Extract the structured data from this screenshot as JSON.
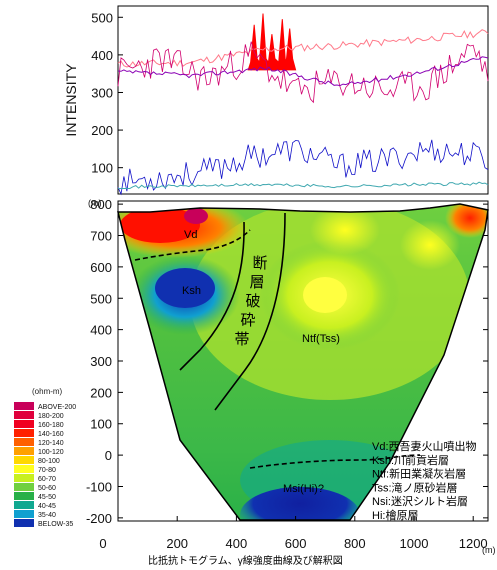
{
  "chart_data": [
    {
      "type": "line",
      "ylabel": "INTENSITY",
      "ylim": [
        30,
        530
      ],
      "xlim": [
        0,
        1250
      ],
      "y_ticks": [
        "100",
        "200",
        "300",
        "400",
        "500"
      ],
      "y_tick_values": [
        100,
        200,
        300,
        400,
        500
      ],
      "series": [
        {
          "color": "#ff7a8a",
          "x": [
            0,
            250,
            500,
            750,
            1000,
            1250
          ],
          "values": [
            375,
            380,
            415,
            425,
            440,
            460
          ]
        },
        {
          "color": "#d0006e",
          "x": [
            0,
            150,
            300,
            450,
            600,
            750,
            900,
            1050,
            1200,
            1250
          ],
          "values": [
            350,
            390,
            335,
            400,
            300,
            330,
            305,
            320,
            420,
            350
          ]
        },
        {
          "color": "#8a00b4",
          "x": [
            0,
            250,
            500,
            750,
            1000,
            1250
          ],
          "values": [
            355,
            345,
            365,
            318,
            350,
            395
          ]
        },
        {
          "color": "#1010c8",
          "x": [
            0,
            150,
            300,
            450,
            600,
            750,
            900,
            1050,
            1200,
            1250
          ],
          "values": [
            60,
            75,
            90,
            130,
            150,
            105,
            120,
            150,
            135,
            120
          ]
        },
        {
          "color": "#40a8b0",
          "x": [
            0,
            250,
            500,
            750,
            1000,
            1250
          ],
          "values": [
            48,
            52,
            55,
            50,
            55,
            58
          ]
        }
      ],
      "fill_color": "#ff0000",
      "fill_peaks_x": [
        460,
        490,
        520,
        555,
        580
      ],
      "fill_peaks_y": [
        480,
        510,
        455,
        495,
        470
      ]
    },
    {
      "type": "heatmap",
      "y_unit": "(m)",
      "x_unit": "(m)",
      "xlim": [
        0,
        1250
      ],
      "ylim": [
        -210,
        810
      ],
      "x_ticks": [
        "0",
        "200",
        "400",
        "600",
        "800",
        "1000",
        "1200"
      ],
      "x_tick_values": [
        0,
        200,
        400,
        600,
        800,
        1000,
        1200
      ],
      "y_ticks": [
        "800",
        "700",
        "600",
        "500",
        "400",
        "300",
        "200",
        "100",
        "0",
        "-100",
        "-200"
      ],
      "y_tick_values": [
        800,
        700,
        600,
        500,
        400,
        300,
        200,
        100,
        0,
        -100,
        -200
      ],
      "colorbar": {
        "title": "(ohm-m)",
        "entries": [
          {
            "label": "ABOVE-200",
            "color": "#c8005a"
          },
          {
            "label": "180-200",
            "color": "#e0003c"
          },
          {
            "label": "160-180",
            "color": "#f00020"
          },
          {
            "label": "140-160",
            "color": "#ff2000"
          },
          {
            "label": "120-140",
            "color": "#ff6000"
          },
          {
            "label": "100-120",
            "color": "#ffa000"
          },
          {
            "label": "80-100",
            "color": "#ffd800"
          },
          {
            "label": "70-80",
            "color": "#ffff20"
          },
          {
            "label": "60-70",
            "color": "#c8f020"
          },
          {
            "label": "50-60",
            "color": "#70d040"
          },
          {
            "label": "45-50",
            "color": "#28b048"
          },
          {
            "label": "40-45",
            "color": "#10a890"
          },
          {
            "label": "35-40",
            "color": "#10a0d0"
          },
          {
            "label": "BELOW-35",
            "color": "#1030b0"
          }
        ]
      },
      "units": [
        "Vd",
        "Ksh",
        "Ntf(Tss)",
        "Msi(Hi)?"
      ],
      "fault_zone_label": "断層破砕帯",
      "key": [
        "Vd:西吾妻火山噴出物",
        "Ksh:川前貢岩層",
        "Ntf:新田業凝灰岩層",
        "Tss:滝ノ原砂岩層",
        "Nsi:迷沢シルト岩層",
        "Hi:檜原層"
      ],
      "caption": "比抵抗トモグラム、γ線強度曲線及び解釈図"
    }
  ]
}
